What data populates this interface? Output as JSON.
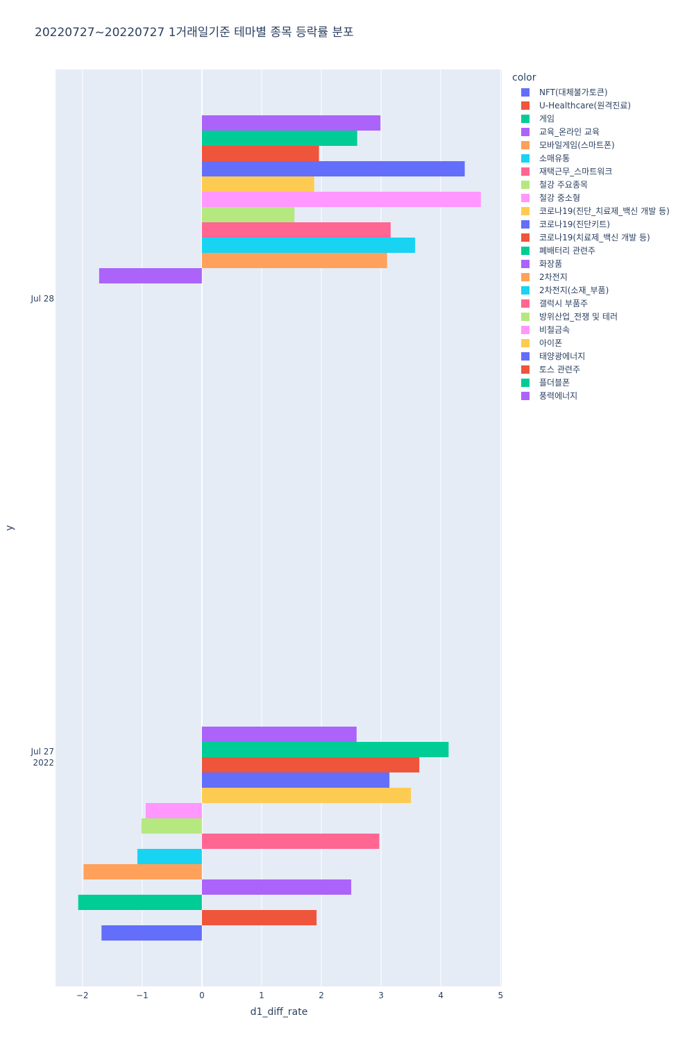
{
  "chart_data": {
    "type": "bar",
    "orientation": "horizontal",
    "title": "20220727~20220727 1거래일기준 테마별 종목 등락률 분포",
    "xlabel": "d1_diff_rate",
    "ylabel": "y",
    "legend_title": "color",
    "legend_position": "right",
    "grid": true,
    "xlim": [
      -2.45,
      5.02
    ],
    "x_ticks": [
      -2,
      -1,
      0,
      1,
      2,
      3,
      4,
      5
    ],
    "x_tick_labels": [
      "−2",
      "−1",
      "0",
      "1",
      "2",
      "3",
      "4",
      "5"
    ],
    "y_tick_labels": [
      {
        "date": "2022-07-28",
        "line1": "Jul 28",
        "line2": ""
      },
      {
        "date": "2022-07-27",
        "line1": "Jul 27",
        "line2": "2022"
      }
    ],
    "categories": [
      "2022-07-28",
      "2022-07-27"
    ],
    "series": [
      {
        "name": "NFT(대체불가토큰)",
        "color": "#636efa",
        "values": [
          null,
          -1.68
        ]
      },
      {
        "name": "U-Healthcare(원격진료)",
        "color": "#EF553B",
        "values": [
          null,
          1.92
        ]
      },
      {
        "name": "게임",
        "color": "#00cc96",
        "values": [
          null,
          -2.07
        ]
      },
      {
        "name": "교육_온라인 교육",
        "color": "#ab63fa",
        "values": [
          null,
          2.5
        ]
      },
      {
        "name": "모바일게임(스마트폰)",
        "color": "#FFA15A",
        "values": [
          null,
          -1.98
        ]
      },
      {
        "name": "소매유통",
        "color": "#19d3f3",
        "values": [
          null,
          -1.08
        ]
      },
      {
        "name": "재택근무_스마트워크",
        "color": "#FF6692",
        "values": [
          null,
          2.97
        ]
      },
      {
        "name": "철강 주요종목",
        "color": "#B6E880",
        "values": [
          null,
          -1.01
        ]
      },
      {
        "name": "철강 중소형",
        "color": "#FF97FF",
        "values": [
          null,
          -0.94
        ]
      },
      {
        "name": "코로나19(진단_치료제_백신 개발 등)",
        "color": "#FECB52",
        "values": [
          null,
          3.5
        ]
      },
      {
        "name": "코로나19(진단키트)",
        "color": "#636efa",
        "values": [
          null,
          3.14
        ]
      },
      {
        "name": "코로나19(치료제_백신 개발 등)",
        "color": "#EF553B",
        "values": [
          null,
          3.64
        ]
      },
      {
        "name": "폐배터리 관련주",
        "color": "#00cc96",
        "values": [
          null,
          4.13
        ]
      },
      {
        "name": "화장품",
        "color": "#ab63fa",
        "values": [
          -1.72,
          2.59
        ]
      },
      {
        "name": "2차전지",
        "color": "#FFA15A",
        "values": [
          3.1,
          null
        ]
      },
      {
        "name": "2차전지(소재_부품)",
        "color": "#19d3f3",
        "values": [
          3.57,
          null
        ]
      },
      {
        "name": "갤럭시 부품주",
        "color": "#FF6692",
        "values": [
          3.16,
          null
        ]
      },
      {
        "name": "방위산업_전쟁 및 테러",
        "color": "#B6E880",
        "values": [
          1.55,
          null
        ]
      },
      {
        "name": "비철금속",
        "color": "#FF97FF",
        "values": [
          4.67,
          null
        ]
      },
      {
        "name": "아이폰",
        "color": "#FECB52",
        "values": [
          1.88,
          null
        ]
      },
      {
        "name": "태양광에너지",
        "color": "#636efa",
        "values": [
          4.4,
          null
        ]
      },
      {
        "name": "토스 관련주",
        "color": "#EF553B",
        "values": [
          1.96,
          null
        ]
      },
      {
        "name": "플더블폰",
        "color": "#00cc96",
        "values": [
          2.6,
          null
        ]
      },
      {
        "name": "풍력에너지",
        "color": "#ab63fa",
        "values": [
          2.99,
          null
        ]
      }
    ]
  }
}
